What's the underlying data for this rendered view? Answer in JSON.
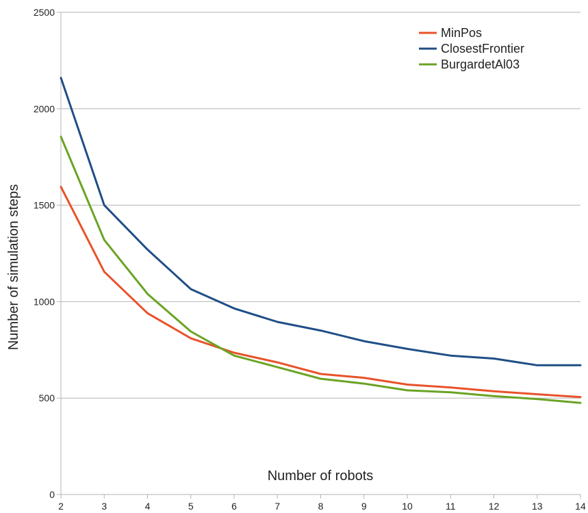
{
  "chart_data": {
    "type": "line",
    "title": "",
    "xlabel": "Number of robots",
    "ylabel": "Number of simulation steps",
    "x": [
      2,
      3,
      4,
      5,
      6,
      7,
      8,
      9,
      10,
      11,
      12,
      13,
      14
    ],
    "xlim": [
      2,
      14
    ],
    "ylim": [
      0,
      2500
    ],
    "yticks": [
      0,
      500,
      1000,
      1500,
      2000,
      2500
    ],
    "grid": true,
    "legend_position": "top-right",
    "series": [
      {
        "name": "MinPos",
        "color": "#e8522a",
        "values": [
          1595,
          1155,
          940,
          810,
          735,
          685,
          625,
          605,
          570,
          555,
          535,
          520,
          505
        ]
      },
      {
        "name": "ClosestFrontier",
        "color": "#1f4e86",
        "values": [
          2160,
          1500,
          1270,
          1065,
          965,
          895,
          850,
          795,
          755,
          720,
          705,
          670,
          670
        ]
      },
      {
        "name": "BurgardetAl03",
        "color": "#6aa324",
        "values": [
          1855,
          1320,
          1040,
          845,
          720,
          660,
          600,
          575,
          540,
          530,
          510,
          495,
          475
        ]
      }
    ]
  }
}
